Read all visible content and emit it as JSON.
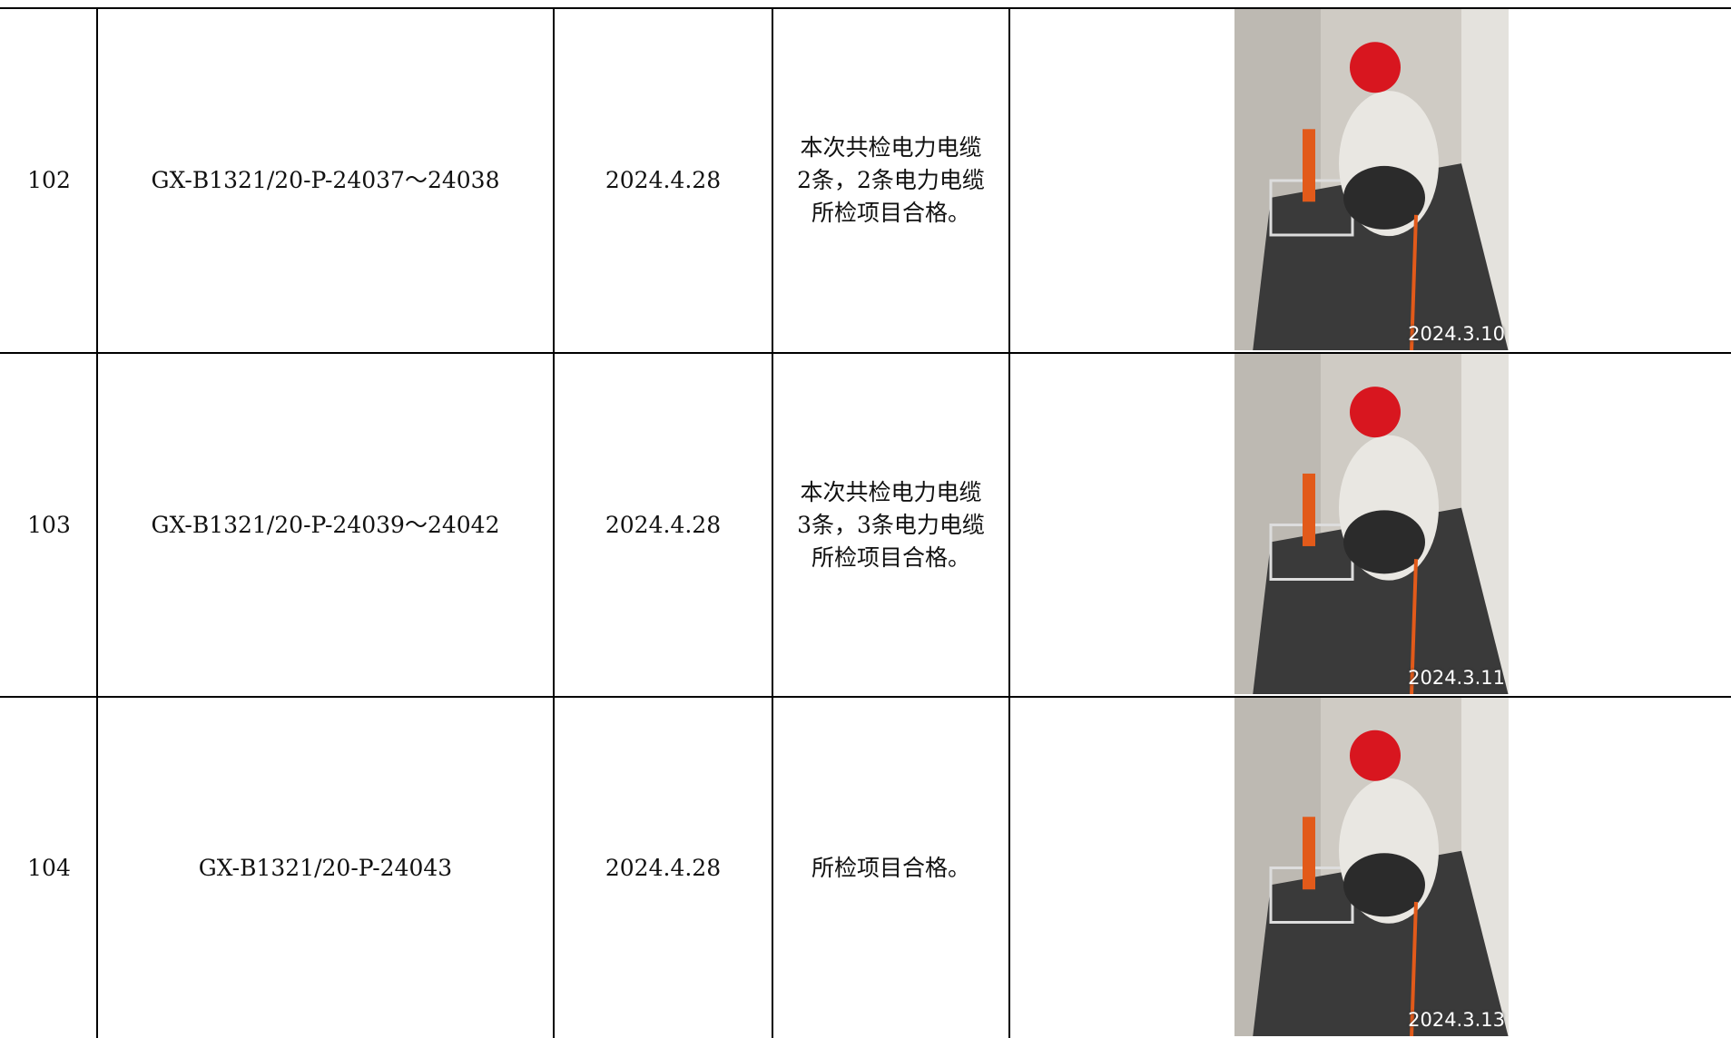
{
  "table": {
    "rows": [
      {
        "no": "102",
        "code": "GX-B1321/20-P-24037～24038",
        "date": "2024.4.28",
        "result": [
          " 本次共检电力电缆",
          "2条，2条电力电缆",
          "所检项目合格。"
        ],
        "photo_date": "2024.3.10"
      },
      {
        "no": "103",
        "code": "GX-B1321/20-P-24039～24042",
        "date": "2024.4.28",
        "result": [
          " 本次共检电力电缆",
          "3条，3条电力电缆",
          "所检项目合格。"
        ],
        "photo_date": "2024.3.11"
      },
      {
        "no": "104",
        "code": "GX-B1321/20-P-24043",
        "date": "2024.4.28",
        "result": [
          "所检项目合格。"
        ],
        "photo_date": "2024.3.13"
      }
    ]
  }
}
